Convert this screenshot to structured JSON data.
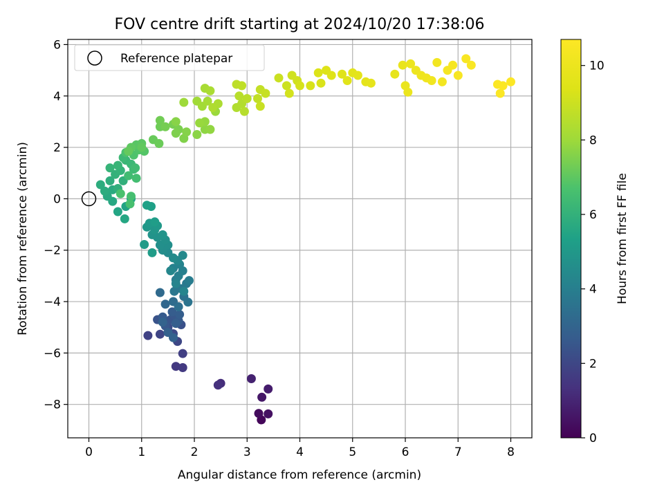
{
  "chart_data": {
    "type": "scatter",
    "title": "FOV centre drift starting at 2024/10/20 17:38:06",
    "xlabel": "Angular distance from reference (arcmin)",
    "ylabel": "Rotation from reference (arcmin)",
    "xlim": [
      -0.4,
      8.4
    ],
    "ylim": [
      -9.3,
      6.2
    ],
    "xticks": [
      0,
      1,
      2,
      3,
      4,
      5,
      6,
      7,
      8
    ],
    "yticks": [
      -8,
      -6,
      -4,
      -2,
      0,
      2,
      4,
      6
    ],
    "grid": true,
    "colorbar": {
      "label": "Hours from first FF file",
      "range": [
        0,
        10.7
      ],
      "ticks": [
        0,
        2,
        4,
        6,
        8,
        10
      ],
      "colormap": "viridis"
    },
    "legend": {
      "position": "top-left",
      "entries": [
        "Reference platepar"
      ]
    },
    "reference_point": {
      "label": "Reference platepar",
      "x": 0,
      "y": 0
    },
    "points": [
      [
        3.27,
        -8.6,
        0.15
      ],
      [
        3.22,
        -8.35,
        0.3
      ],
      [
        3.4,
        -8.37,
        0.45
      ],
      [
        3.28,
        -7.72,
        0.6
      ],
      [
        3.4,
        -7.4,
        0.75
      ],
      [
        3.08,
        -7.0,
        0.9
      ],
      [
        2.5,
        -7.18,
        1.2
      ],
      [
        2.45,
        -7.25,
        1.3
      ],
      [
        1.65,
        -6.52,
        1.55
      ],
      [
        1.78,
        -6.57,
        1.6
      ],
      [
        1.78,
        -6.02,
        1.75
      ],
      [
        1.12,
        -5.32,
        1.85
      ],
      [
        1.35,
        -5.27,
        1.95
      ],
      [
        1.68,
        -5.55,
        2.0
      ],
      [
        1.6,
        -5.25,
        2.1
      ],
      [
        1.5,
        -5.0,
        2.2
      ],
      [
        1.75,
        -4.9,
        2.3
      ],
      [
        1.3,
        -4.7,
        2.4
      ],
      [
        1.55,
        -4.7,
        2.45
      ],
      [
        1.62,
        -4.55,
        2.5
      ],
      [
        1.45,
        -4.95,
        2.55
      ],
      [
        1.7,
        -4.75,
        2.6
      ],
      [
        1.4,
        -4.6,
        2.65
      ],
      [
        1.58,
        -4.4,
        2.7
      ],
      [
        1.72,
        -4.5,
        2.75
      ],
      [
        1.65,
        -4.85,
        2.8
      ],
      [
        1.5,
        -5.2,
        2.85
      ],
      [
        1.6,
        -5.4,
        2.9
      ],
      [
        1.4,
        -4.8,
        2.95
      ],
      [
        1.45,
        -4.1,
        3.1
      ],
      [
        1.35,
        -3.65,
        3.2
      ],
      [
        1.6,
        -4.0,
        3.3
      ],
      [
        1.7,
        -4.2,
        3.4
      ],
      [
        1.8,
        -3.8,
        3.5
      ],
      [
        1.88,
        -4.02,
        3.6
      ],
      [
        1.62,
        -3.6,
        3.7
      ],
      [
        1.75,
        -3.5,
        3.75
      ],
      [
        1.85,
        -3.3,
        3.8
      ],
      [
        1.65,
        -3.15,
        3.85
      ],
      [
        1.9,
        -3.18,
        3.9
      ],
      [
        1.7,
        -3.0,
        4.0
      ],
      [
        1.78,
        -2.8,
        4.05
      ],
      [
        1.6,
        -2.7,
        4.1
      ],
      [
        1.72,
        -2.55,
        4.15
      ],
      [
        1.65,
        -3.3,
        4.2
      ],
      [
        1.8,
        -3.6,
        4.25
      ],
      [
        1.55,
        -2.8,
        4.3
      ],
      [
        1.68,
        -2.4,
        4.35
      ],
      [
        1.78,
        -2.2,
        4.4
      ],
      [
        1.5,
        -2.1,
        4.45
      ],
      [
        1.6,
        -2.3,
        4.5
      ],
      [
        1.4,
        -2.0,
        4.55
      ],
      [
        1.5,
        -1.8,
        4.6
      ],
      [
        1.35,
        -1.8,
        4.65
      ],
      [
        1.45,
        -1.6,
        4.7
      ],
      [
        1.3,
        -1.5,
        4.75
      ],
      [
        1.2,
        -1.4,
        4.8
      ],
      [
        1.4,
        -1.4,
        4.85
      ],
      [
        1.25,
        -1.2,
        4.9
      ],
      [
        1.1,
        -1.1,
        4.95
      ],
      [
        1.3,
        -1.05,
        5.0
      ],
      [
        1.15,
        -0.95,
        5.05
      ],
      [
        1.05,
        -1.78,
        5.1
      ],
      [
        1.2,
        -2.1,
        5.15
      ],
      [
        1.25,
        -0.9,
        5.2
      ],
      [
        1.18,
        -0.3,
        5.3
      ],
      [
        1.1,
        -0.25,
        5.35
      ],
      [
        0.8,
        0.0,
        5.4
      ],
      [
        0.7,
        -0.3,
        5.45
      ],
      [
        0.55,
        -0.5,
        5.5
      ],
      [
        0.68,
        -0.78,
        5.55
      ],
      [
        0.45,
        -0.1,
        5.6
      ],
      [
        0.35,
        0.1,
        5.65
      ],
      [
        0.45,
        0.35,
        5.7
      ],
      [
        0.3,
        0.3,
        5.75
      ],
      [
        0.22,
        0.55,
        5.8
      ],
      [
        0.4,
        0.7,
        5.85
      ],
      [
        0.55,
        0.4,
        5.9
      ],
      [
        0.65,
        0.7,
        5.95
      ],
      [
        0.5,
        0.95,
        6.0
      ],
      [
        0.6,
        1.1,
        6.05
      ],
      [
        0.4,
        1.2,
        6.1
      ],
      [
        0.55,
        1.3,
        6.15
      ],
      [
        0.7,
        1.5,
        6.2
      ],
      [
        0.8,
        1.35,
        6.25
      ],
      [
        0.65,
        1.6,
        6.3
      ],
      [
        0.85,
        1.15,
        6.35
      ],
      [
        0.88,
        1.2,
        6.4
      ],
      [
        0.75,
        0.9,
        6.45
      ],
      [
        0.9,
        0.8,
        6.5
      ],
      [
        0.8,
        0.1,
        6.55
      ],
      [
        0.78,
        -0.2,
        6.6
      ],
      [
        0.6,
        0.2,
        6.65
      ],
      [
        0.7,
        1.8,
        6.7
      ],
      [
        0.85,
        1.7,
        6.75
      ],
      [
        0.95,
        1.9,
        6.8
      ],
      [
        1.05,
        1.85,
        6.85
      ],
      [
        0.9,
        2.1,
        6.9
      ],
      [
        1.0,
        2.15,
        6.95
      ],
      [
        0.8,
        2.0,
        7.0
      ],
      [
        1.0,
        2.0,
        7.05
      ],
      [
        0.75,
        1.85,
        7.1
      ],
      [
        1.22,
        2.3,
        7.15
      ],
      [
        1.33,
        2.15,
        7.2
      ],
      [
        1.35,
        2.8,
        7.25
      ],
      [
        1.35,
        3.05,
        7.3
      ],
      [
        1.45,
        2.8,
        7.35
      ],
      [
        1.6,
        2.9,
        7.4
      ],
      [
        1.7,
        2.7,
        7.45
      ],
      [
        1.65,
        2.55,
        7.5
      ],
      [
        1.8,
        2.35,
        7.55
      ],
      [
        1.85,
        2.6,
        7.6
      ],
      [
        1.65,
        3.0,
        7.65
      ],
      [
        2.05,
        2.5,
        7.7
      ],
      [
        2.2,
        2.7,
        7.75
      ],
      [
        2.3,
        2.7,
        7.8
      ],
      [
        2.2,
        3.0,
        7.85
      ],
      [
        2.1,
        2.95,
        7.9
      ],
      [
        2.4,
        3.4,
        7.95
      ],
      [
        1.8,
        3.75,
        8.0
      ],
      [
        2.05,
        3.8,
        8.05
      ],
      [
        2.15,
        3.6,
        8.1
      ],
      [
        2.25,
        3.8,
        8.15
      ],
      [
        2.2,
        4.3,
        8.2
      ],
      [
        2.3,
        4.2,
        8.25
      ],
      [
        2.45,
        3.7,
        8.3
      ],
      [
        2.35,
        3.55,
        8.35
      ],
      [
        2.8,
        3.55,
        8.4
      ],
      [
        2.9,
        3.7,
        8.45
      ],
      [
        2.95,
        3.4,
        8.5
      ],
      [
        2.85,
        4.0,
        8.55
      ],
      [
        3.0,
        3.9,
        8.6
      ],
      [
        2.8,
        4.45,
        8.65
      ],
      [
        2.9,
        4.4,
        8.7
      ],
      [
        3.2,
        3.9,
        8.75
      ],
      [
        3.25,
        4.25,
        8.8
      ],
      [
        3.35,
        4.1,
        8.85
      ],
      [
        3.25,
        3.6,
        8.9
      ],
      [
        3.6,
        4.7,
        8.95
      ],
      [
        3.75,
        4.4,
        9.0
      ],
      [
        3.85,
        4.8,
        9.05
      ],
      [
        3.95,
        4.6,
        9.1
      ],
      [
        3.8,
        4.1,
        9.15
      ],
      [
        4.0,
        4.4,
        9.2
      ],
      [
        4.2,
        4.4,
        9.25
      ],
      [
        4.4,
        4.5,
        9.3
      ],
      [
        4.35,
        4.9,
        9.35
      ],
      [
        4.5,
        5.0,
        9.4
      ],
      [
        4.6,
        4.8,
        9.45
      ],
      [
        4.8,
        4.85,
        9.5
      ],
      [
        4.9,
        4.6,
        9.55
      ],
      [
        5.0,
        4.9,
        9.6
      ],
      [
        5.1,
        4.8,
        9.65
      ],
      [
        5.25,
        4.55,
        9.7
      ],
      [
        5.35,
        4.5,
        9.75
      ],
      [
        5.8,
        4.85,
        9.8
      ],
      [
        5.95,
        5.2,
        9.85
      ],
      [
        6.0,
        4.4,
        9.9
      ],
      [
        6.05,
        4.15,
        9.95
      ],
      [
        6.1,
        5.25,
        10.0
      ],
      [
        6.2,
        5.0,
        10.05
      ],
      [
        6.3,
        4.8,
        10.1
      ],
      [
        6.4,
        4.7,
        10.15
      ],
      [
        6.5,
        4.6,
        10.2
      ],
      [
        6.6,
        5.3,
        10.25
      ],
      [
        6.7,
        4.55,
        10.3
      ],
      [
        6.8,
        5.0,
        10.35
      ],
      [
        6.9,
        5.2,
        10.4
      ],
      [
        7.0,
        4.8,
        10.45
      ],
      [
        7.15,
        5.45,
        10.5
      ],
      [
        7.25,
        5.2,
        10.55
      ],
      [
        7.75,
        4.45,
        10.6
      ],
      [
        7.8,
        4.1,
        10.62
      ],
      [
        7.85,
        4.4,
        10.64
      ],
      [
        8.0,
        4.55,
        10.66
      ]
    ]
  }
}
